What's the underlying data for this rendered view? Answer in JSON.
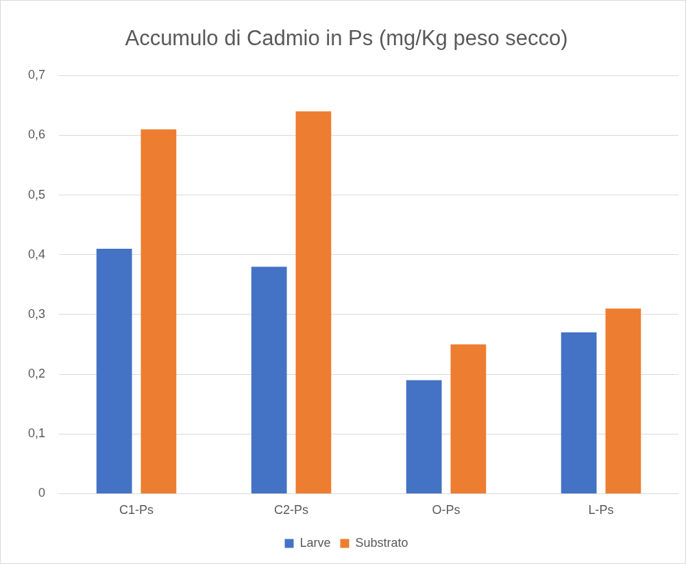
{
  "chart_data": {
    "type": "bar",
    "title": "Accumulo di Cadmio in Ps (mg/Kg peso secco)",
    "categories": [
      "C1-Ps",
      "C2-Ps",
      "O-Ps",
      "L-Ps"
    ],
    "series": [
      {
        "name": "Larve",
        "color": "#4472c4",
        "values": [
          0.41,
          0.38,
          0.19,
          0.27
        ]
      },
      {
        "name": "Substrato",
        "color": "#ed7d31",
        "values": [
          0.61,
          0.64,
          0.25,
          0.31
        ]
      }
    ],
    "ylim": [
      0,
      0.7
    ],
    "yticks": [
      0,
      {
        "value": 0.1,
        "label": "0,1"
      },
      {
        "value": 0.2,
        "label": "0,2"
      },
      {
        "value": 0.3,
        "label": "0,3"
      },
      {
        "value": 0.4,
        "label": "0,4"
      },
      {
        "value": 0.5,
        "label": "0,5"
      },
      {
        "value": 0.6,
        "label": "0,6"
      },
      {
        "value": 0.7,
        "label": "0,7"
      }
    ],
    "grid": "y",
    "legend": "bottom"
  }
}
